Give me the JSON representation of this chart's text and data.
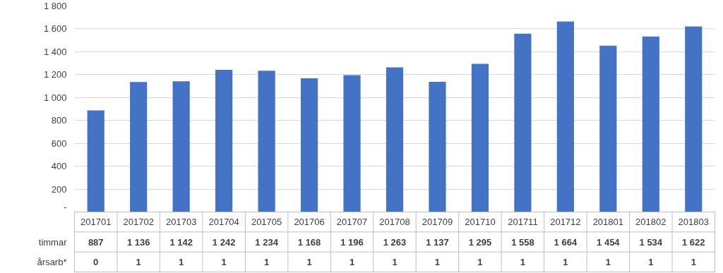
{
  "chart_data": {
    "type": "bar",
    "categories": [
      "201701",
      "201702",
      "201703",
      "201704",
      "201705",
      "201706",
      "201707",
      "201708",
      "201709",
      "201710",
      "201711",
      "201712",
      "201801",
      "201802",
      "201803"
    ],
    "series": [
      {
        "name": "timmar",
        "color": "#4472c4",
        "values": [
          887,
          1136,
          1142,
          1242,
          1234,
          1168,
          1196,
          1263,
          1137,
          1295,
          1558,
          1664,
          1454,
          1534,
          1622
        ],
        "value_labels": [
          "887",
          "1 136",
          "1 142",
          "1 242",
          "1 234",
          "1 168",
          "1 196",
          "1 263",
          "1 137",
          "1 295",
          "1 558",
          "1 664",
          "1 454",
          "1 534",
          "1 622"
        ]
      },
      {
        "name": "årsarb*",
        "values": [
          0,
          1,
          1,
          1,
          1,
          1,
          1,
          1,
          1,
          1,
          1,
          1,
          1,
          1,
          1
        ]
      }
    ],
    "ylim": [
      0,
      1800
    ],
    "yticks": [
      {
        "value": 0,
        "label": "-"
      },
      {
        "value": 200,
        "label": "200"
      },
      {
        "value": 400,
        "label": "400"
      },
      {
        "value": 600,
        "label": "600"
      },
      {
        "value": 800,
        "label": "800"
      },
      {
        "value": 1000,
        "label": "1 000"
      },
      {
        "value": 1200,
        "label": "1 200"
      },
      {
        "value": 1400,
        "label": "1 400"
      },
      {
        "value": 1600,
        "label": "1 600"
      },
      {
        "value": 1800,
        "label": "1 800"
      }
    ],
    "grid": "y",
    "data_labels": true
  }
}
